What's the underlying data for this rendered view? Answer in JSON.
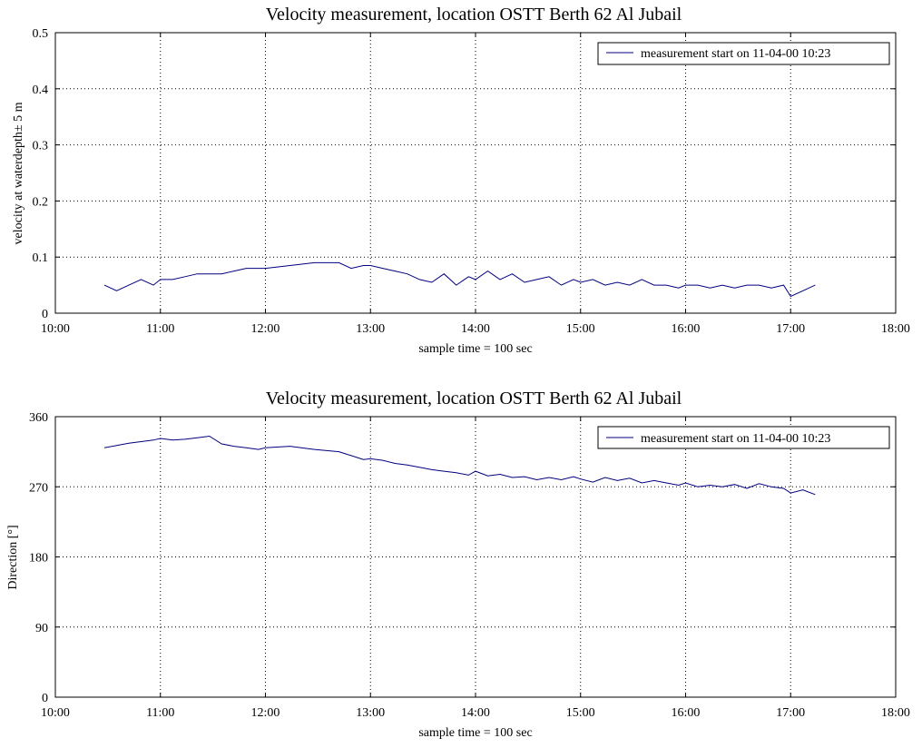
{
  "chart_data": [
    {
      "type": "line",
      "title": "Velocity measurement, location OSTT Berth 62 Al Jubail",
      "xlabel": "sample time = 100 sec",
      "ylabel": "velocity at waterdepth± 5 m",
      "xlim": [
        "10:00",
        "18:00"
      ],
      "ylim": [
        0,
        0.5
      ],
      "x_ticks": [
        "10:00",
        "11:00",
        "12:00",
        "13:00",
        "14:00",
        "15:00",
        "16:00",
        "17:00",
        "18:00"
      ],
      "y_ticks": [
        "0",
        "0.1",
        "0.2",
        "0.3",
        "0.4",
        "0.5"
      ],
      "grid": true,
      "legend_position": "top-right",
      "series": [
        {
          "name": "measurement start on 11-04-00 10:23",
          "color": "#000080",
          "x": [
            "10:28",
            "10:35",
            "10:42",
            "10:49",
            "10:56",
            "11:00",
            "11:07",
            "11:14",
            "11:21",
            "11:28",
            "11:35",
            "11:42",
            "11:49",
            "11:56",
            "12:00",
            "12:14",
            "12:28",
            "12:42",
            "12:49",
            "12:56",
            "13:00",
            "13:07",
            "13:14",
            "13:21",
            "13:28",
            "13:35",
            "13:42",
            "13:49",
            "13:56",
            "14:00",
            "14:07",
            "14:14",
            "14:21",
            "14:28",
            "14:35",
            "14:42",
            "14:49",
            "14:56",
            "15:00",
            "15:07",
            "15:14",
            "15:21",
            "15:28",
            "15:35",
            "15:42",
            "15:49",
            "15:56",
            "16:00",
            "16:07",
            "16:14",
            "16:21",
            "16:28",
            "16:35",
            "16:42",
            "16:49",
            "16:56",
            "17:00",
            "17:07",
            "17:14"
          ],
          "y": [
            0.05,
            0.04,
            0.05,
            0.06,
            0.05,
            0.06,
            0.06,
            0.065,
            0.07,
            0.07,
            0.07,
            0.075,
            0.08,
            0.08,
            0.08,
            0.085,
            0.09,
            0.09,
            0.08,
            0.085,
            0.085,
            0.08,
            0.075,
            0.07,
            0.06,
            0.055,
            0.07,
            0.05,
            0.065,
            0.06,
            0.075,
            0.06,
            0.07,
            0.055,
            0.06,
            0.065,
            0.05,
            0.06,
            0.055,
            0.06,
            0.05,
            0.055,
            0.05,
            0.06,
            0.05,
            0.05,
            0.045,
            0.05,
            0.05,
            0.045,
            0.05,
            0.045,
            0.05,
            0.05,
            0.045,
            0.05,
            0.03,
            0.04,
            0.05
          ]
        }
      ]
    },
    {
      "type": "line",
      "title": "Velocity measurement, location OSTT Berth 62 Al Jubail",
      "xlabel": "sample time = 100 sec",
      "ylabel": "Direction [°]",
      "xlim": [
        "10:00",
        "18:00"
      ],
      "ylim": [
        0,
        360
      ],
      "x_ticks": [
        "10:00",
        "11:00",
        "12:00",
        "13:00",
        "14:00",
        "15:00",
        "16:00",
        "17:00",
        "18:00"
      ],
      "y_ticks": [
        "0",
        "90",
        "180",
        "270",
        "360"
      ],
      "grid": true,
      "legend_position": "top-right",
      "series": [
        {
          "name": "measurement start on 11-04-00 10:23",
          "color": "#000080",
          "x": [
            "10:28",
            "10:35",
            "10:42",
            "10:49",
            "10:56",
            "11:00",
            "11:07",
            "11:14",
            "11:21",
            "11:28",
            "11:35",
            "11:42",
            "11:49",
            "11:56",
            "12:00",
            "12:14",
            "12:28",
            "12:42",
            "12:49",
            "12:56",
            "13:00",
            "13:07",
            "13:14",
            "13:21",
            "13:28",
            "13:35",
            "13:42",
            "13:49",
            "13:56",
            "14:00",
            "14:07",
            "14:14",
            "14:21",
            "14:28",
            "14:35",
            "14:42",
            "14:49",
            "14:56",
            "15:00",
            "15:07",
            "15:14",
            "15:21",
            "15:28",
            "15:35",
            "15:42",
            "15:49",
            "15:56",
            "16:00",
            "16:07",
            "16:14",
            "16:21",
            "16:28",
            "16:35",
            "16:42",
            "16:49",
            "16:56",
            "17:00",
            "17:07",
            "17:14"
          ],
          "y": [
            320,
            323,
            326,
            328,
            330,
            332,
            330,
            331,
            333,
            335,
            325,
            322,
            320,
            318,
            320,
            322,
            318,
            315,
            310,
            305,
            306,
            304,
            300,
            298,
            295,
            292,
            290,
            288,
            285,
            290,
            284,
            286,
            282,
            283,
            279,
            282,
            279,
            283,
            280,
            276,
            282,
            278,
            281,
            275,
            278,
            275,
            272,
            275,
            270,
            272,
            270,
            273,
            268,
            274,
            270,
            268,
            262,
            266,
            260
          ]
        }
      ]
    }
  ]
}
